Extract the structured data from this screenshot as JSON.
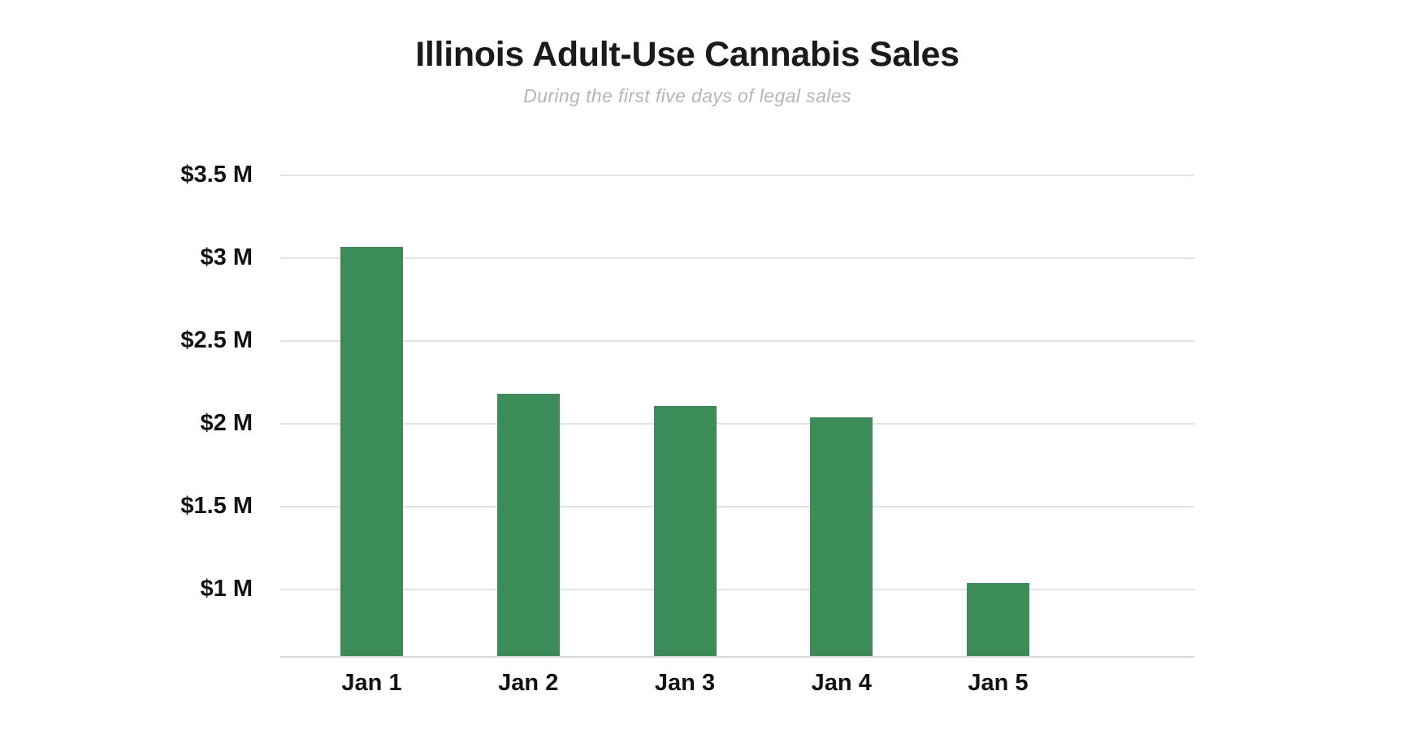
{
  "chart_data": {
    "type": "bar",
    "title": "Illinois Adult-Use Cannabis Sales",
    "subtitle": "During the first five days of legal sales",
    "categories": [
      "Jan 1",
      "Jan 2",
      "Jan 3",
      "Jan 4",
      "Jan 5"
    ],
    "values": [
      3.07,
      2.18,
      2.11,
      2.04,
      1.04
    ],
    "values_unit": "USD millions",
    "y_ticks": [
      {
        "value": 3.5,
        "label": "$3.5 M"
      },
      {
        "value": 3.0,
        "label": "$3 M"
      },
      {
        "value": 2.5,
        "label": "$2.5 M"
      },
      {
        "value": 2.0,
        "label": "$2 M"
      },
      {
        "value": 1.5,
        "label": "$1.5 M"
      },
      {
        "value": 1.0,
        "label": "$1 M"
      }
    ],
    "y_axis_min": 0.6,
    "y_axis_max": 3.5,
    "xlabel": "",
    "ylabel": "",
    "grid": true,
    "legend": false,
    "bar_color": "#3c8c5a",
    "colors": {
      "title": "#1b1b1b",
      "subtitle": "#b5b5b5",
      "tick_label": "#121212",
      "gridline": "#e3e3e3",
      "baseline": "#d9d9d9",
      "background": "#ffffff"
    }
  }
}
